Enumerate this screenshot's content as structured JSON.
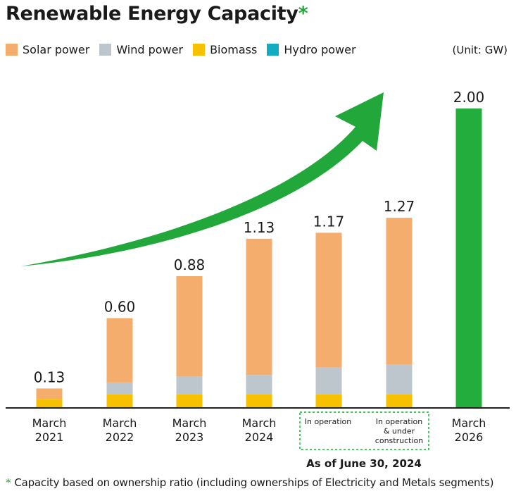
{
  "title": "Renewable Energy Capacity",
  "title_asterisk": "*",
  "unit_label": "(Unit: GW)",
  "colors": {
    "solar": "#f4ad6d",
    "wind": "#bcc6cc",
    "biomass": "#f7c100",
    "hydro": "#12adc1",
    "target": "#22ad3c",
    "arrow": "#22a83a",
    "dashed_box": "#22a83a",
    "axis": "#222222"
  },
  "chart_data": {
    "type": "bar",
    "stacked": true,
    "title": "Renewable Energy Capacity",
    "ylabel": "GW",
    "ylim": [
      0,
      2.2
    ],
    "legend": {
      "placement": "top-left",
      "entries": [
        "Solar power",
        "Wind power",
        "Biomass",
        "Hydro power"
      ]
    },
    "categories": [
      [
        "March",
        "2021"
      ],
      [
        "March",
        "2022"
      ],
      [
        "March",
        "2023"
      ],
      [
        "March",
        "2024"
      ],
      [
        "In operation"
      ],
      [
        "In operation",
        "& under",
        "construction"
      ],
      [
        "March",
        "2026"
      ]
    ],
    "series": [
      {
        "name": "Biomass",
        "color_key": "biomass",
        "values": [
          0.06,
          0.09,
          0.09,
          0.09,
          0.09,
          0.09,
          null
        ]
      },
      {
        "name": "Wind power",
        "color_key": "wind",
        "values": [
          0.0,
          0.08,
          0.12,
          0.13,
          0.18,
          0.2,
          null
        ]
      },
      {
        "name": "Solar power",
        "color_key": "solar",
        "values": [
          0.07,
          0.43,
          0.67,
          0.91,
          0.9,
          0.98,
          null
        ]
      },
      {
        "name": "Hydro power",
        "color_key": "hydro",
        "values": [
          0,
          0,
          0,
          0,
          0,
          0,
          null
        ]
      },
      {
        "name": "Target",
        "color_key": "target",
        "values": [
          null,
          null,
          null,
          null,
          null,
          null,
          2.0
        ]
      }
    ],
    "totals": [
      "0.13",
      "0.60",
      "0.88",
      "1.13",
      "1.17",
      "1.27",
      "2.00"
    ],
    "group_label": "As of June 30, 2024",
    "group_indices": [
      4,
      5
    ]
  },
  "footnote": {
    "asterisk": "*",
    "text": "Capacity based on ownership ratio (including ownerships of Electricity and Metals segments)"
  }
}
